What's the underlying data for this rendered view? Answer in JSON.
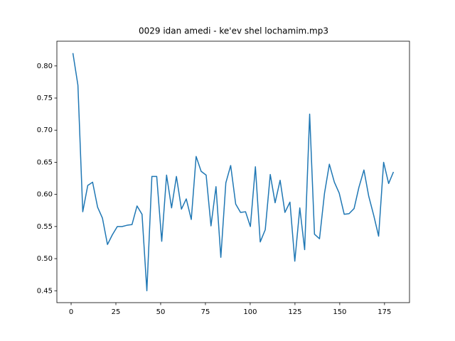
{
  "chart_data": {
    "type": "line",
    "title": "0029 idan amedi - ke'ev shel lochamim.mp3",
    "x": [
      1.0,
      3.8,
      6.5,
      9.3,
      12.0,
      14.8,
      17.5,
      20.3,
      23.0,
      25.8,
      28.5,
      31.3,
      34.0,
      36.8,
      39.6,
      42.3,
      45.1,
      47.8,
      50.6,
      53.3,
      56.1,
      58.8,
      61.6,
      64.3,
      67.1,
      69.8,
      72.6,
      75.4,
      78.1,
      80.9,
      83.6,
      86.4,
      89.1,
      91.9,
      94.6,
      97.4,
      100.1,
      102.9,
      105.6,
      108.4,
      111.2,
      113.9,
      116.7,
      119.4,
      122.2,
      124.9,
      127.7,
      130.4,
      133.2,
      135.9,
      138.7,
      141.5,
      144.2,
      147.0,
      149.7,
      152.5,
      155.2,
      158.0,
      160.7,
      163.5,
      166.2,
      169.0,
      171.7,
      174.5,
      177.3,
      180.0
    ],
    "series": [
      {
        "color": "#1f77b4",
        "values": [
          0.82,
          0.77,
          0.573,
          0.614,
          0.619,
          0.58,
          0.563,
          0.522,
          0.537,
          0.55,
          0.55,
          0.552,
          0.553,
          0.582,
          0.569,
          0.45,
          0.628,
          0.628,
          0.527,
          0.63,
          0.579,
          0.628,
          0.577,
          0.593,
          0.561,
          0.659,
          0.636,
          0.63,
          0.551,
          0.612,
          0.502,
          0.618,
          0.645,
          0.585,
          0.572,
          0.573,
          0.55,
          0.643,
          0.526,
          0.545,
          0.631,
          0.587,
          0.622,
          0.572,
          0.588,
          0.496,
          0.579,
          0.514,
          0.725,
          0.538,
          0.531,
          0.602,
          0.647,
          0.619,
          0.602,
          0.569,
          0.57,
          0.578,
          0.611,
          0.638,
          0.597,
          0.567,
          0.535,
          0.65,
          0.617,
          0.635
        ]
      }
    ],
    "xlim": [
      -7.95,
      188.95
    ],
    "xticks": [
      0,
      25,
      50,
      75,
      100,
      125,
      150,
      175
    ],
    "ylim": [
      0.4315,
      0.8385
    ],
    "yticks": [
      0.45,
      {
        "value": 0.5,
        "label": "0.50"
      },
      0.55,
      {
        "value": 0.6,
        "label": "0.60"
      },
      0.65,
      {
        "value": 0.7,
        "label": "0.70"
      },
      0.75,
      {
        "value": 0.8,
        "label": "0.80"
      }
    ]
  }
}
